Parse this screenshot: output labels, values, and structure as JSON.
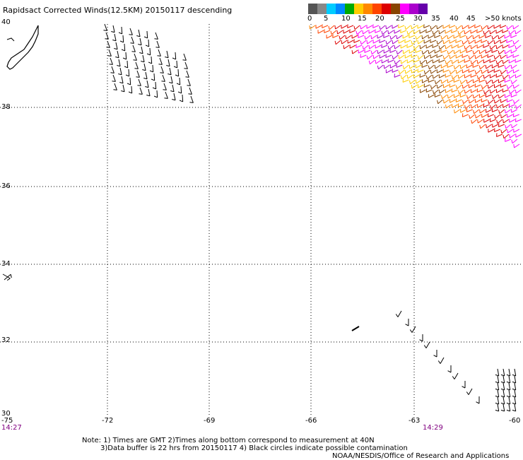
{
  "title": "Rapidsact Corrected Winds(12.5KM) 20150117 descending",
  "legend": {
    "labels": [
      "0",
      "5",
      "10",
      "15",
      "20",
      "25",
      "30",
      "35",
      "40",
      "45",
      ">50 knots"
    ],
    "colors": [
      "#555555",
      "#888888",
      "#00ccff",
      "#0088ff",
      "#00aa00",
      "#ffcc00",
      "#ff8800",
      "#ff4400",
      "#dd0000",
      "#884400",
      "#ff00ff",
      "#aa00cc",
      "#6600aa"
    ]
  },
  "lat_labels": [
    "40",
    "38",
    "36",
    "34",
    "32",
    "30"
  ],
  "lon_labels": [
    "-75",
    "-72",
    "-69",
    "-66",
    "-63",
    "-60"
  ],
  "times": [
    "14:27",
    "14:29"
  ],
  "note_lines": [
    "Note: 1) Times are GMT 2)Times along bottom correspond to measurement at 40N",
    "3)Data buffer is 22 hrs from 20150117 4) Black circles indicate possible contamination",
    "NOAA/NESDIS/Office of Research and Applications"
  ]
}
